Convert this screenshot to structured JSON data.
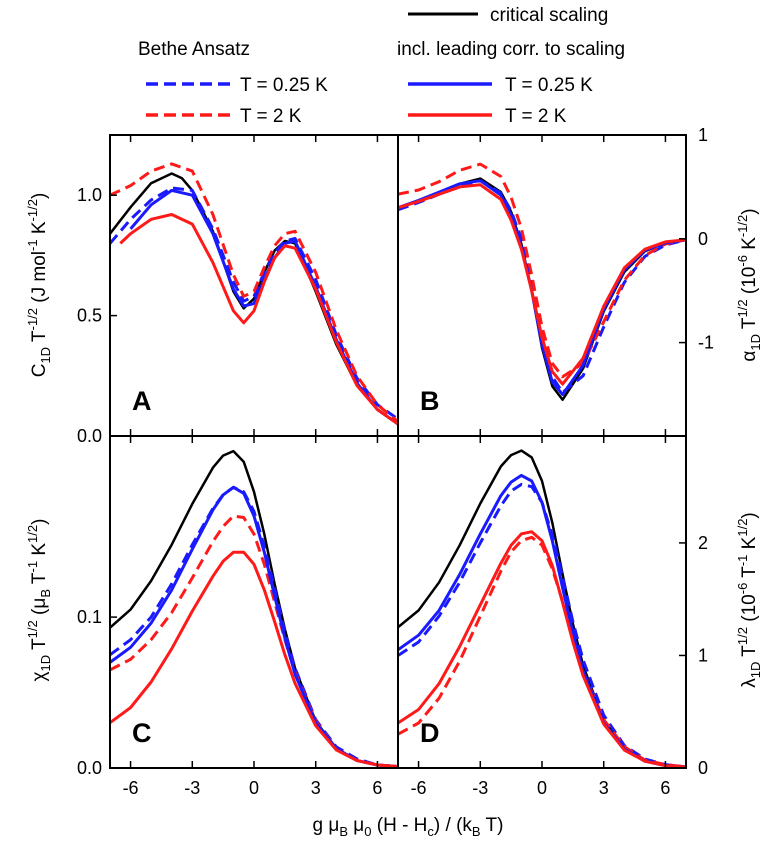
{
  "legend": {
    "critical_label": "critical scaling",
    "bethe_header": "Bethe Ansatz",
    "corr_header": "incl. leading corr. to scaling",
    "bethe_items": [
      {
        "label": "T = 0.25 K",
        "color": "#1a1aff",
        "style": "dashed"
      },
      {
        "label": "T = 2 K",
        "color": "#ff1a1a",
        "style": "dashed"
      }
    ],
    "corr_items": [
      {
        "label": "T = 0.25 K",
        "color": "#1a1aff",
        "style": "solid"
      },
      {
        "label": "T = 2 K",
        "color": "#ff1a1a",
        "style": "solid"
      }
    ],
    "critical_color": "#000000"
  },
  "axes": {
    "xlabel": "g μ_B μ_0 (H - H_c) / (k_B T)",
    "A_ylabel": "C_1D T^-1/2 (J mol^-1 K^-1/2)",
    "B_ylabel": "α_1D T^1/2 (10^-6 K^-1/2)",
    "C_ylabel": "χ_1D T^1/2 (μ_B T^-1 K^1/2)",
    "D_ylabel": "λ_1D T^1/2 (10^-6 T^-1 K^1/2)"
  },
  "chart_data": [
    {
      "type": "line",
      "panel": "A",
      "letter": "A",
      "xlim": [
        -7,
        7
      ],
      "ylim": [
        0,
        1.25
      ],
      "xticks": [
        "-6",
        "-3",
        "0",
        "3",
        "6"
      ],
      "yticks": [
        {
          "v": 0,
          "label": "0.0"
        },
        {
          "v": 0.5,
          "label": "0.5"
        },
        {
          "v": 1.0,
          "label": "1.0"
        }
      ],
      "ytick_side": "left",
      "series": [
        {
          "key": "critical",
          "color": "#000000",
          "dash": "solid",
          "width": 2.5,
          "x": [
            -7,
            -6,
            -5,
            -4,
            -3.5,
            -3,
            -2,
            -1,
            -0.5,
            0,
            0.5,
            1,
            1.5,
            2,
            3,
            4,
            5,
            6,
            7
          ],
          "y": [
            0.84,
            0.95,
            1.05,
            1.09,
            1.07,
            1.02,
            0.85,
            0.6,
            0.53,
            0.57,
            0.68,
            0.77,
            0.81,
            0.8,
            0.6,
            0.38,
            0.21,
            0.11,
            0.05
          ]
        },
        {
          "key": "bethe-0.25",
          "color": "#1a1aff",
          "dash": "dashed",
          "width": 3,
          "x": [
            -7,
            -6,
            -5,
            -4,
            -3,
            -2,
            -1,
            -0.5,
            0,
            0.5,
            1,
            1.5,
            2,
            3,
            4,
            5,
            6,
            7
          ],
          "y": [
            0.8,
            0.9,
            0.98,
            1.03,
            1.02,
            0.86,
            0.64,
            0.56,
            0.58,
            0.68,
            0.76,
            0.81,
            0.82,
            0.65,
            0.42,
            0.24,
            0.13,
            0.07
          ]
        },
        {
          "key": "bethe-2",
          "color": "#ff1a1a",
          "dash": "dashed",
          "width": 3,
          "x": [
            -7,
            -6,
            -5,
            -4,
            -3,
            -2,
            -1,
            -0.5,
            0,
            0.5,
            1,
            1.5,
            2,
            3,
            4,
            5,
            6,
            7
          ],
          "y": [
            1.0,
            1.04,
            1.1,
            1.13,
            1.1,
            0.92,
            0.67,
            0.58,
            0.6,
            0.7,
            0.79,
            0.84,
            0.85,
            0.68,
            0.44,
            0.25,
            0.13,
            0.06
          ]
        },
        {
          "key": "corr-0.25",
          "color": "#1a1aff",
          "dash": "solid",
          "width": 3,
          "x": [
            -6,
            -5,
            -4,
            -3,
            -2,
            -1,
            -0.5,
            0,
            0.5,
            1,
            1.5,
            2,
            3,
            4,
            5,
            6,
            7
          ],
          "y": [
            0.86,
            0.96,
            1.02,
            1.0,
            0.84,
            0.61,
            0.54,
            0.55,
            0.65,
            0.74,
            0.8,
            0.81,
            0.62,
            0.4,
            0.22,
            0.11,
            0.05
          ]
        },
        {
          "key": "corr-2",
          "color": "#ff1a1a",
          "dash": "solid",
          "width": 3,
          "x": [
            -6.5,
            -6,
            -5,
            -4,
            -3,
            -2,
            -1,
            -0.5,
            0,
            0.5,
            1,
            1.5,
            2,
            3,
            4,
            5,
            6,
            7
          ],
          "y": [
            0.8,
            0.84,
            0.9,
            0.92,
            0.88,
            0.72,
            0.52,
            0.47,
            0.52,
            0.64,
            0.74,
            0.79,
            0.78,
            0.61,
            0.39,
            0.21,
            0.11,
            0.05
          ]
        }
      ]
    },
    {
      "type": "line",
      "panel": "B",
      "letter": "B",
      "xlim": [
        -7,
        7
      ],
      "ylim": [
        -1.9,
        1.0
      ],
      "xticks": [],
      "yticks": [
        {
          "v": -1,
          "label": "-1"
        },
        {
          "v": 0,
          "label": "0"
        },
        {
          "v": 1,
          "label": "1"
        }
      ],
      "ytick_side": "right",
      "series": [
        {
          "key": "critical",
          "color": "#000000",
          "dash": "solid",
          "width": 2.5,
          "x": [
            -7,
            -6,
            -5,
            -4,
            -3,
            -2,
            -1.5,
            -1,
            -0.5,
            0,
            0.5,
            1,
            2,
            3,
            4,
            5,
            6,
            7
          ],
          "y": [
            0.3,
            0.37,
            0.45,
            0.53,
            0.58,
            0.45,
            0.26,
            -0.05,
            -0.5,
            -1.05,
            -1.42,
            -1.55,
            -1.25,
            -0.7,
            -0.32,
            -0.12,
            -0.04,
            -0.01
          ]
        },
        {
          "key": "bethe-0.25",
          "color": "#1a1aff",
          "dash": "dashed",
          "width": 3,
          "x": [
            -7,
            -6,
            -5,
            -4,
            -3,
            -2,
            -1.5,
            -1,
            -0.5,
            0,
            0.5,
            1,
            2,
            3,
            4,
            5,
            6,
            7
          ],
          "y": [
            0.28,
            0.35,
            0.43,
            0.5,
            0.56,
            0.44,
            0.27,
            0.0,
            -0.42,
            -0.95,
            -1.33,
            -1.48,
            -1.32,
            -0.85,
            -0.42,
            -0.17,
            -0.06,
            -0.01
          ]
        },
        {
          "key": "bethe-2",
          "color": "#ff1a1a",
          "dash": "dashed",
          "width": 3,
          "x": [
            -7,
            -6,
            -5,
            -4,
            -3,
            -2,
            -1.5,
            -1,
            -0.5,
            0,
            0.5,
            1,
            2,
            3,
            4,
            5,
            6,
            7
          ],
          "y": [
            0.43,
            0.47,
            0.55,
            0.66,
            0.72,
            0.6,
            0.4,
            0.1,
            -0.35,
            -0.85,
            -1.2,
            -1.33,
            -1.2,
            -0.8,
            -0.4,
            -0.16,
            -0.05,
            -0.01
          ]
        },
        {
          "key": "corr-0.25",
          "color": "#1a1aff",
          "dash": "solid",
          "width": 3,
          "x": [
            -7,
            -6,
            -5,
            -4,
            -3,
            -2,
            -1.5,
            -1,
            -0.5,
            0,
            0.5,
            1,
            2,
            3,
            4,
            5,
            6,
            7
          ],
          "y": [
            0.3,
            0.37,
            0.45,
            0.53,
            0.56,
            0.42,
            0.23,
            -0.08,
            -0.5,
            -1.02,
            -1.38,
            -1.5,
            -1.22,
            -0.68,
            -0.3,
            -0.11,
            -0.04,
            -0.01
          ]
        },
        {
          "key": "corr-2",
          "color": "#ff1a1a",
          "dash": "solid",
          "width": 3,
          "x": [
            -7,
            -6,
            -5,
            -4,
            -3,
            -2,
            -1.5,
            -1,
            -0.5,
            0,
            0.5,
            1,
            2,
            3,
            4,
            5,
            6,
            7
          ],
          "y": [
            0.3,
            0.36,
            0.43,
            0.5,
            0.52,
            0.38,
            0.18,
            -0.1,
            -0.5,
            -0.95,
            -1.28,
            -1.4,
            -1.15,
            -0.65,
            -0.28,
            -0.1,
            -0.03,
            -0.01
          ]
        }
      ]
    },
    {
      "type": "line",
      "panel": "C",
      "letter": "C",
      "xlim": [
        -7,
        7
      ],
      "ylim": [
        0,
        0.22
      ],
      "xticks": [
        "-6",
        "-3",
        "0",
        "3",
        "6"
      ],
      "yticks": [
        {
          "v": 0,
          "label": "0.0"
        },
        {
          "v": 0.1,
          "label": "0.1"
        }
      ],
      "ytick_side": "left",
      "series": [
        {
          "key": "critical",
          "color": "#000000",
          "dash": "solid",
          "width": 2.5,
          "x": [
            -7,
            -6,
            -5,
            -4,
            -3,
            -2,
            -1.5,
            -1,
            -0.5,
            0,
            0.5,
            1,
            1.5,
            2,
            3,
            4,
            5,
            6,
            7
          ],
          "y": [
            0.093,
            0.105,
            0.124,
            0.148,
            0.175,
            0.199,
            0.207,
            0.21,
            0.203,
            0.183,
            0.155,
            0.122,
            0.092,
            0.066,
            0.031,
            0.013,
            0.005,
            0.002,
            0.001
          ]
        },
        {
          "key": "bethe-0.25",
          "color": "#1a1aff",
          "dash": "dashed",
          "width": 3,
          "x": [
            -7,
            -6,
            -5,
            -4,
            -3,
            -2,
            -1.5,
            -1,
            -0.5,
            0,
            0.5,
            1,
            1.5,
            2,
            3,
            4,
            5,
            6,
            7
          ],
          "y": [
            0.075,
            0.085,
            0.1,
            0.122,
            0.148,
            0.172,
            0.181,
            0.186,
            0.183,
            0.17,
            0.147,
            0.119,
            0.09,
            0.066,
            0.032,
            0.014,
            0.006,
            0.002,
            0.001
          ]
        },
        {
          "key": "bethe-2",
          "color": "#ff1a1a",
          "dash": "dashed",
          "width": 3,
          "x": [
            -7,
            -6,
            -5,
            -4,
            -3,
            -2,
            -1.5,
            -1,
            -0.5,
            0,
            0.5,
            1,
            1.5,
            2,
            3,
            4,
            5,
            6,
            7
          ],
          "y": [
            0.065,
            0.072,
            0.085,
            0.103,
            0.126,
            0.15,
            0.16,
            0.167,
            0.166,
            0.155,
            0.135,
            0.11,
            0.085,
            0.063,
            0.031,
            0.013,
            0.005,
            0.002,
            0.001
          ]
        },
        {
          "key": "corr-0.25",
          "color": "#1a1aff",
          "dash": "solid",
          "width": 3,
          "x": [
            -7,
            -6,
            -5,
            -4,
            -3,
            -2,
            -1.5,
            -1,
            -0.5,
            0,
            0.5,
            1,
            1.5,
            2,
            3,
            4,
            5,
            6,
            7
          ],
          "y": [
            0.07,
            0.08,
            0.096,
            0.118,
            0.145,
            0.171,
            0.181,
            0.186,
            0.182,
            0.167,
            0.143,
            0.114,
            0.086,
            0.062,
            0.03,
            0.013,
            0.005,
            0.002,
            0.001
          ]
        },
        {
          "key": "corr-2",
          "color": "#ff1a1a",
          "dash": "solid",
          "width": 3,
          "x": [
            -7,
            -6,
            -5,
            -4,
            -3,
            -2,
            -1.5,
            -1,
            -0.5,
            0,
            0.5,
            1,
            1.5,
            2,
            3,
            4,
            5,
            6,
            7
          ],
          "y": [
            0.03,
            0.04,
            0.057,
            0.079,
            0.104,
            0.127,
            0.137,
            0.143,
            0.143,
            0.135,
            0.118,
            0.097,
            0.075,
            0.056,
            0.028,
            0.012,
            0.005,
            0.002,
            0.001
          ]
        }
      ]
    },
    {
      "type": "line",
      "panel": "D",
      "letter": "D",
      "xlim": [
        -7,
        7
      ],
      "ylim": [
        0,
        2.95
      ],
      "xticks": [
        "-6",
        "-3",
        "0",
        "3",
        "6"
      ],
      "yticks": [
        {
          "v": 0,
          "label": "0"
        },
        {
          "v": 1,
          "label": "1"
        },
        {
          "v": 2,
          "label": "2"
        }
      ],
      "ytick_side": "right",
      "series": [
        {
          "key": "critical",
          "color": "#000000",
          "dash": "solid",
          "width": 2.5,
          "x": [
            -7,
            -6,
            -5,
            -4,
            -3,
            -2,
            -1.5,
            -1,
            -0.5,
            0,
            0.5,
            1,
            1.5,
            2,
            3,
            4,
            5,
            6,
            7
          ],
          "y": [
            1.25,
            1.4,
            1.65,
            1.98,
            2.35,
            2.68,
            2.78,
            2.82,
            2.76,
            2.55,
            2.18,
            1.72,
            1.28,
            0.91,
            0.42,
            0.18,
            0.07,
            0.02,
            0.01
          ]
        },
        {
          "key": "bethe-0.25",
          "color": "#1a1aff",
          "dash": "dashed",
          "width": 3,
          "x": [
            -7,
            -6,
            -5,
            -4,
            -3,
            -2,
            -1.5,
            -1,
            -0.5,
            0,
            0.5,
            1,
            1.5,
            2,
            3,
            4,
            5,
            6,
            7
          ],
          "y": [
            1.0,
            1.12,
            1.35,
            1.65,
            2.0,
            2.33,
            2.46,
            2.52,
            2.5,
            2.36,
            2.07,
            1.7,
            1.3,
            0.96,
            0.47,
            0.2,
            0.08,
            0.03,
            0.01
          ]
        },
        {
          "key": "bethe-2",
          "color": "#ff1a1a",
          "dash": "dashed",
          "width": 3,
          "x": [
            -7,
            -6,
            -5,
            -4,
            -3,
            -2,
            -1.5,
            -1,
            -0.5,
            0,
            0.5,
            1,
            1.5,
            2,
            3,
            4,
            5,
            6,
            7
          ],
          "y": [
            0.3,
            0.4,
            0.62,
            0.95,
            1.35,
            1.75,
            1.92,
            2.02,
            2.05,
            1.98,
            1.77,
            1.48,
            1.15,
            0.86,
            0.43,
            0.19,
            0.07,
            0.03,
            0.01
          ]
        },
        {
          "key": "corr-0.25",
          "color": "#1a1aff",
          "dash": "solid",
          "width": 3,
          "x": [
            -7,
            -6,
            -5,
            -4,
            -3,
            -2,
            -1.5,
            -1,
            -0.5,
            0,
            0.5,
            1,
            1.5,
            2,
            3,
            4,
            5,
            6,
            7
          ],
          "y": [
            1.05,
            1.18,
            1.4,
            1.72,
            2.08,
            2.42,
            2.54,
            2.6,
            2.55,
            2.36,
            2.02,
            1.6,
            1.2,
            0.86,
            0.4,
            0.17,
            0.06,
            0.02,
            0.01
          ]
        },
        {
          "key": "corr-2",
          "color": "#ff1a1a",
          "dash": "solid",
          "width": 3,
          "x": [
            -7,
            -6,
            -5,
            -4,
            -3,
            -2,
            -1.5,
            -1,
            -0.5,
            0,
            0.5,
            1,
            1.5,
            2,
            3,
            4,
            5,
            6,
            7
          ],
          "y": [
            0.4,
            0.52,
            0.75,
            1.08,
            1.45,
            1.82,
            1.98,
            2.08,
            2.1,
            2.02,
            1.8,
            1.47,
            1.12,
            0.82,
            0.39,
            0.16,
            0.06,
            0.02,
            0.01
          ]
        }
      ]
    }
  ]
}
